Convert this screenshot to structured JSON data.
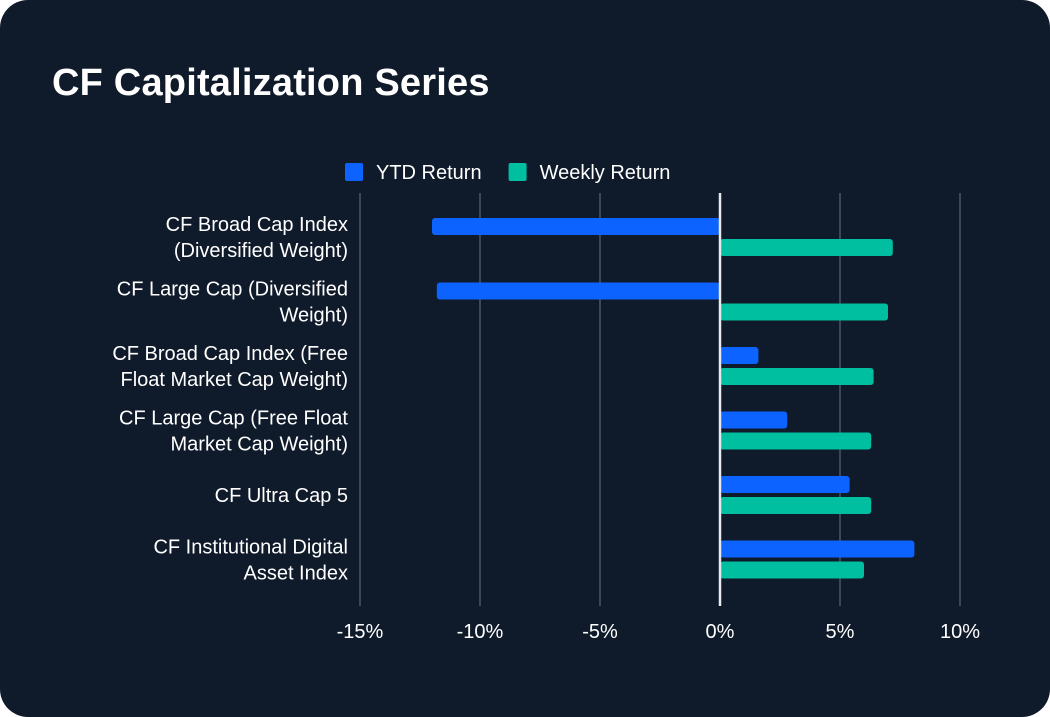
{
  "title": "CF Capitalization Series",
  "chart_data": {
    "type": "bar",
    "orientation": "horizontal",
    "categories": [
      [
        "CF Broad Cap Index",
        "(Diversified Weight)"
      ],
      [
        "CF Large Cap (Diversified",
        "Weight)"
      ],
      [
        "CF Broad Cap Index (Free",
        "Float Market Cap Weight)"
      ],
      [
        "CF Large Cap (Free Float",
        "Market Cap Weight)"
      ],
      [
        "CF Ultra Cap 5"
      ],
      [
        "CF Institutional Digital",
        "Asset Index"
      ]
    ],
    "series": [
      {
        "name": "YTD Return",
        "color": "#0d63ff",
        "values": [
          -12.0,
          -11.8,
          1.6,
          2.8,
          5.4,
          8.1
        ]
      },
      {
        "name": "Weekly Return",
        "color": "#00bfa0",
        "values": [
          7.2,
          7.0,
          6.4,
          6.3,
          6.3,
          6.0
        ]
      }
    ],
    "xlim": [
      -15,
      10
    ],
    "ticks": [
      -15,
      -10,
      -5,
      0,
      5,
      10
    ],
    "tick_labels": [
      "-15%",
      "-10%",
      "-5%",
      "0%",
      "5%",
      "10%"
    ],
    "grid": true,
    "legend_position": "top"
  }
}
